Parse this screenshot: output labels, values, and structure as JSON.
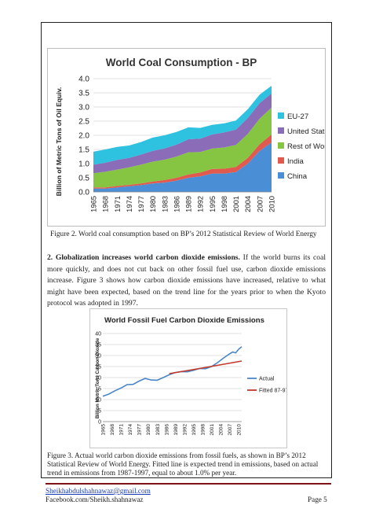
{
  "figure2": {
    "caption": "Figure 2. World coal consumption based on BP’s 2012 Statistical Review of World Energy",
    "chart": {
      "type": "area",
      "title": "World Coal Consumption - BP",
      "ylabel": "Billion of Metric Tons of Oil Equiv.",
      "ylim": [
        0,
        4.0
      ],
      "yticks": [
        "0.0",
        "0.5",
        "1.0",
        "1.5",
        "2.0",
        "2.5",
        "3.0",
        "3.5",
        "4.0"
      ],
      "xticks": [
        "1965",
        "1968",
        "1971",
        "1974",
        "1977",
        "1980",
        "1983",
        "1986",
        "1989",
        "1992",
        "1995",
        "1998",
        "2001",
        "2004",
        "2007",
        "2010"
      ],
      "x": [
        1965,
        1968,
        1971,
        1974,
        1977,
        1980,
        1983,
        1986,
        1989,
        1992,
        1995,
        1998,
        2001,
        2004,
        2007,
        2010
      ],
      "series": [
        {
          "name": "China",
          "color": "#4a8fd6",
          "values": [
            0.12,
            0.12,
            0.16,
            0.2,
            0.24,
            0.3,
            0.33,
            0.4,
            0.5,
            0.55,
            0.65,
            0.65,
            0.7,
            1.0,
            1.45,
            1.75
          ]
        },
        {
          "name": "India",
          "color": "#e05a4e",
          "values": [
            0.04,
            0.04,
            0.05,
            0.05,
            0.06,
            0.07,
            0.09,
            0.1,
            0.12,
            0.14,
            0.16,
            0.17,
            0.18,
            0.2,
            0.24,
            0.28
          ]
        },
        {
          "name": "Rest of World",
          "color": "#86c542",
          "values": [
            0.5,
            0.55,
            0.58,
            0.62,
            0.66,
            0.7,
            0.72,
            0.75,
            0.78,
            0.72,
            0.72,
            0.75,
            0.78,
            0.85,
            0.9,
            0.95
          ]
        },
        {
          "name": "United States",
          "color": "#8b6cb8",
          "values": [
            0.3,
            0.32,
            0.34,
            0.33,
            0.36,
            0.38,
            0.4,
            0.42,
            0.46,
            0.47,
            0.5,
            0.53,
            0.54,
            0.56,
            0.55,
            0.5
          ]
        },
        {
          "name": "EU-27",
          "color": "#2ec1e0",
          "values": [
            0.46,
            0.47,
            0.46,
            0.44,
            0.44,
            0.47,
            0.46,
            0.45,
            0.42,
            0.38,
            0.34,
            0.32,
            0.32,
            0.31,
            0.3,
            0.27
          ]
        }
      ],
      "legend_order": [
        "EU-27",
        "United States",
        "Rest of World",
        "India",
        "China"
      ]
    }
  },
  "paragraph": {
    "heading": "2. Globalization increases world carbon dioxide emissions.",
    "body": " If the world burns its coal more quickly, and does not cut back on other fossil fuel use, carbon dioxide emissions increase. Figure 3 shows how carbon dioxide emissions have increased, relative to what might have been expected, based on the trend line for the years prior to when the Kyoto protocol was adopted in 1997."
  },
  "figure3": {
    "caption": "Figure 3. Actual world carbon dioxide emissions from fossil fuels, as shown in BP’s 2012 Statistical Review of World Energy. Fitted line is expected trend in emissions, based on actual trend in emissions from 1987-1997, equal to about 1.0% per year.",
    "chart": {
      "type": "line",
      "title": "World Fossil Fuel Carbon Dioxide Emissions",
      "ylabel": "Billion Metric Tons Carbon Dioxide",
      "ylim": [
        0,
        40
      ],
      "yticks": [
        "0",
        "5",
        "10",
        "15",
        "20",
        "25",
        "30",
        "35",
        "40"
      ],
      "xticks": [
        "1965",
        "1968",
        "1971",
        "1974",
        "1977",
        "1980",
        "1983",
        "1986",
        "1989",
        "1992",
        "1995",
        "1998",
        "2001",
        "2004",
        "2007",
        "2010"
      ],
      "series": [
        {
          "name": "Actual",
          "color": "#4a86c8",
          "x": [
            1965,
            1967,
            1969,
            1971,
            1973,
            1975,
            1977,
            1979,
            1981,
            1983,
            1985,
            1987,
            1989,
            1991,
            1993,
            1995,
            1997,
            1999,
            2001,
            2003,
            2005,
            2007,
            2008,
            2009,
            2010,
            2011
          ],
          "values": [
            11.5,
            12.5,
            14,
            15.2,
            16.8,
            16.9,
            18.4,
            19.6,
            18.9,
            18.8,
            20,
            21.3,
            22.3,
            22.7,
            22.6,
            23.3,
            24.1,
            24,
            25,
            26.8,
            28.9,
            30.8,
            31.6,
            31.2,
            32.9,
            34
          ]
        },
        {
          "name": "Fitted 87-97",
          "color": "#c0392b",
          "x": [
            1987,
            1997,
            2011
          ],
          "values": [
            21.8,
            24.1,
            27.5
          ]
        }
      ]
    }
  },
  "footer": {
    "email": "Sheikhabdulshahnawaz@gmail.com",
    "facebook": "Facebook.com/Sheikh.shahnawaz",
    "page": "Page 5"
  }
}
